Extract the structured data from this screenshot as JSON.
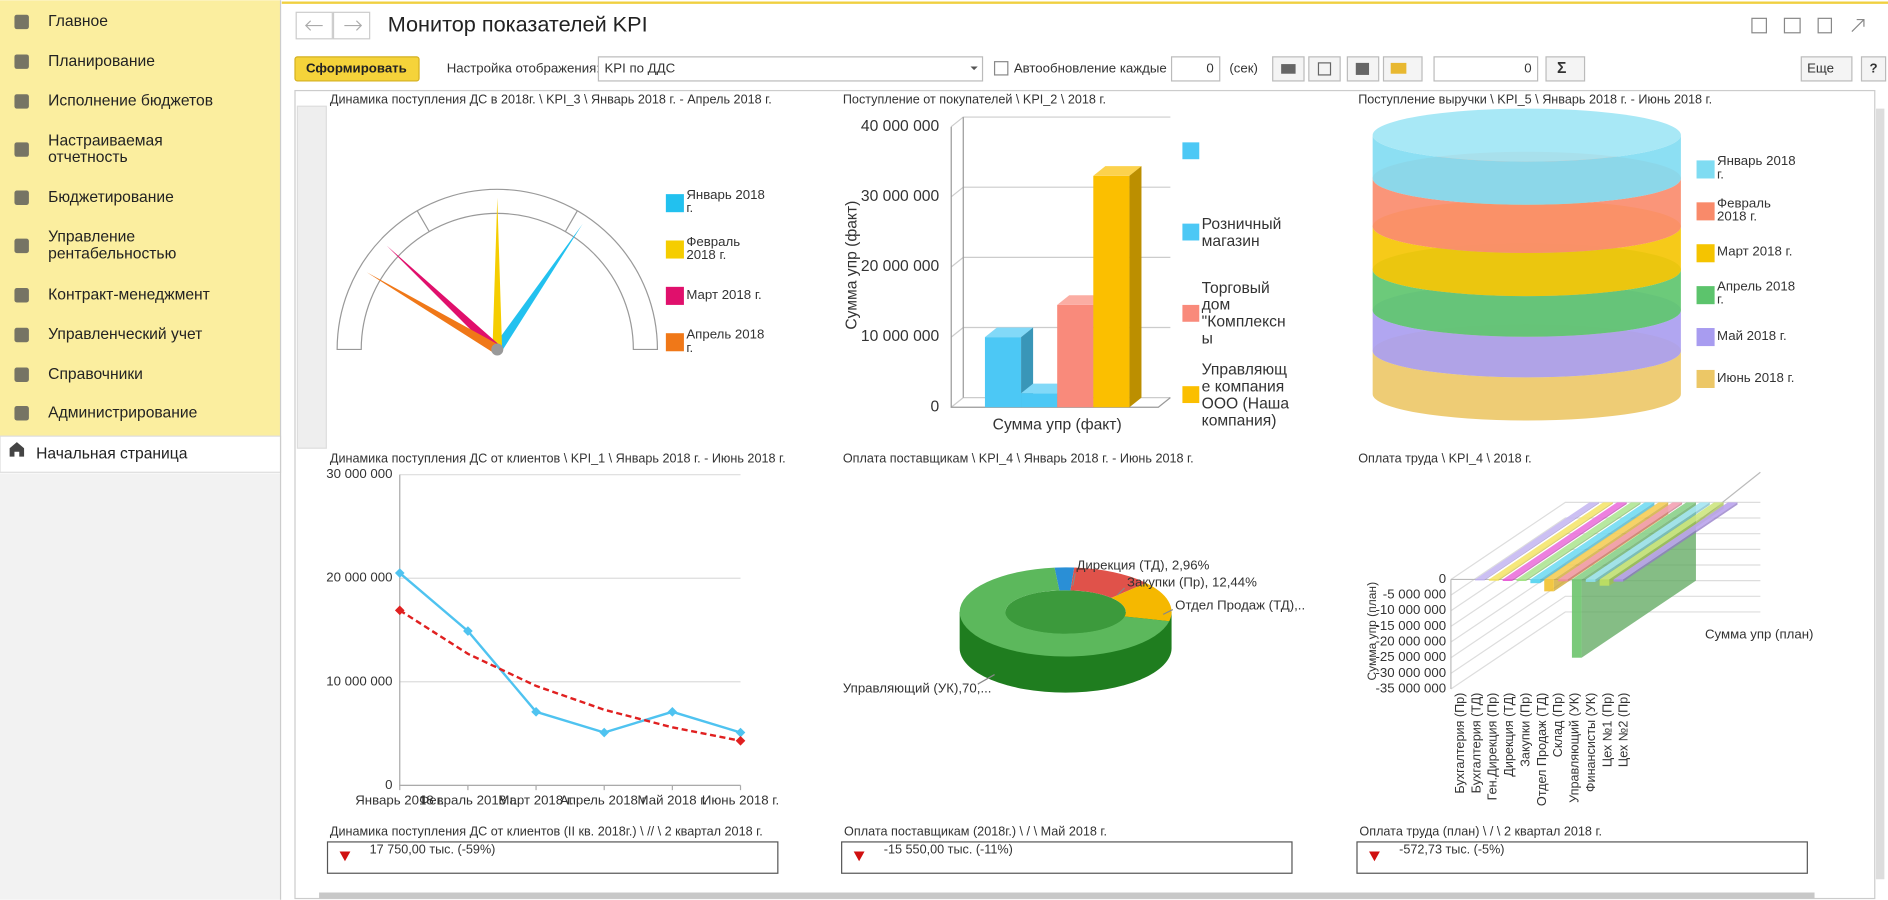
{
  "sidebar": {
    "items": [
      [
        "Главное"
      ],
      [
        "Планирование"
      ],
      [
        "Исполнение бюджетов"
      ],
      [
        "Настраиваемая",
        "отчетность"
      ],
      [
        "Бюджетирование"
      ],
      [
        "Управление",
        "рентабельностью"
      ],
      [
        "Контракт-менеджмент"
      ],
      [
        "Управленческий учет"
      ],
      [
        "Справочники"
      ],
      [
        "Администрирование"
      ]
    ],
    "home": "Начальная страница"
  },
  "header": {
    "title": "Монитор показателей KPI"
  },
  "toolbar": {
    "generate": "Сформировать",
    "settings_label": "Настройка отображения:",
    "settings_value": "KPI по ДДС",
    "auto_update": "Автообновление каждые",
    "interval": 0,
    "interval_unit": "(сек)",
    "counter": 0,
    "sum": "Σ",
    "more": "Еще",
    "help": "?"
  },
  "chart_data": [
    {
      "type": "gauge",
      "title": "Динамика поступления ДС в 2018г. \\ KPI_3 \\ Январь 2018 г. - Апрель 2018 г.",
      "ylim": [
        0,
        100
      ],
      "series": [
        {
          "name": "Январь 2018 г.",
          "color": "#22c1ef",
          "values": [
            69
          ]
        },
        {
          "name": "Февраль 2018 г.",
          "color": "#f5cd00",
          "values": [
            50
          ]
        },
        {
          "name": "Март 2018 г.",
          "color": "#e0106c",
          "values": [
            24
          ]
        },
        {
          "name": "Апрель 2018 г.",
          "color": "#f07818",
          "values": [
            17
          ]
        }
      ]
    },
    {
      "type": "bar",
      "title": "Поступление от покупателей \\ KPI_2 \\ 2018 г.",
      "ylabel": "Сумма упр (факт)",
      "categories": [
        "Сумма упр (факт)"
      ],
      "ylim": [
        0,
        40000000
      ],
      "yticks": [
        0,
        {
          "value": 10000000,
          "label": "10 000 000"
        },
        {
          "value": 20000000,
          "label": "20 000 000"
        },
        {
          "value": 30000000,
          "label": "30 000 000"
        },
        {
          "value": 40000000,
          "label": "40 000 000"
        }
      ],
      "grid": true,
      "series": [
        {
          "name": null,
          "color": "#4cc8f5",
          "values": [
            10000000
          ]
        },
        {
          "name": "Розничный магазин",
          "color": "#4cc8f5",
          "values": [
            2000000
          ]
        },
        {
          "name": "Торговый дом \"Комплексны",
          "color": "#f98a7b",
          "values": [
            14600000
          ]
        },
        {
          "name": "Управляюще компания ООО (Наша компания)",
          "color": "#fbbf00",
          "values": [
            33000000
          ]
        }
      ]
    },
    {
      "type": "cylinder",
      "title": "Поступление выручки \\ KPI_5 \\ Январь 2018 г. - Июнь 2018 г.",
      "series": [
        {
          "name": "Январь 2018 г.",
          "color": "#7fdcf2",
          "values": [
            17
          ]
        },
        {
          "name": "Февраль 2018 г.",
          "color": "#f98a6a",
          "values": [
            19
          ]
        },
        {
          "name": "Март 2018 г.",
          "color": "#f5c400",
          "values": [
            17
          ]
        },
        {
          "name": "Апрель 2018 г.",
          "color": "#5cc46c",
          "values": [
            16
          ]
        },
        {
          "name": "Май 2018 г.",
          "color": "#a89cf0",
          "values": [
            16
          ]
        },
        {
          "name": "Июнь 2018 г.",
          "color": "#ecc766",
          "values": [
            17
          ]
        }
      ]
    },
    {
      "type": "line",
      "title": "Динамика поступления ДС от клиентов \\ KPI_1 \\ Январь 2018 г. - Июнь 2018 г.",
      "categories": [
        "Январь 2018 г.",
        "Февраль 2018 г.",
        "Март 2018 г.",
        "Апрель 2018 г.",
        "Май 2018 г.",
        "Июнь 2018 г."
      ],
      "ylim": [
        0,
        30000000
      ],
      "yticks": [
        0,
        {
          "value": 10000000,
          "label": "10 000 000"
        },
        {
          "value": 20000000,
          "label": "20 000 000"
        },
        {
          "value": 30000000,
          "label": "30 000 000"
        }
      ],
      "grid": true,
      "series": [
        {
          "color": "#4fc3f0",
          "values": [
            20500000,
            14900000,
            7100000,
            5100000,
            7100000,
            5100000
          ]
        },
        {
          "color": "#e02020",
          "style": "dashed",
          "values": [
            16900000,
            12700000,
            9600000,
            7300000,
            5600000,
            4300000
          ]
        }
      ]
    },
    {
      "type": "pie",
      "title": "Оплата поставщикам \\ KPI_4 \\ Январь 2018 г. - Июнь 2018 г.",
      "donut": true,
      "values": [
        2.96,
        12.44,
        14.6,
        70.0
      ],
      "value_labels": [
        "Дирекция (ТД), 2,96%",
        "Закупки (Пр), 12,44%",
        "Отдел Продаж (ТД),..",
        "Управляющий (УК),70,..."
      ],
      "colors": [
        "#2a8fd6",
        "#e0524a",
        "#f5b800",
        "#5cb85c"
      ]
    },
    {
      "type": "bar3d",
      "title": "Оплата труда \\ KPI_4 \\ 2018 г.",
      "ylabel": "Сумма упр (план)",
      "categories": [
        "Бухгалтерия (Пр)",
        "Бухгалтерия (ТД)",
        "Ген.Дирекция (Пр)",
        "Дирекция (ТД)",
        "Закупки (Пр)",
        "Отдел Продаж (ТД)",
        "Склад (Пр)",
        "Управляющий (УК)",
        "Финансисты (УК)",
        "Цех №1 (Пр)",
        "Цех №2 (Пр)"
      ],
      "ylim": [
        -35000000,
        0
      ],
      "yticks": [
        0,
        {
          "value": -5000000,
          "label": "-5 000 000"
        },
        {
          "value": -10000000,
          "label": "-10 000 000"
        },
        {
          "value": -15000000,
          "label": "-15 000 000"
        },
        {
          "value": -20000000,
          "label": "-20 000 000"
        },
        {
          "value": -25000000,
          "label": "-25 000 000"
        },
        {
          "value": -30000000,
          "label": "-30 000 000"
        },
        {
          "value": -35000000,
          "label": "-35 000 000"
        }
      ],
      "colors": [
        "#b9a7ef",
        "#f2e04a",
        "#e64fd3",
        "#9be07a",
        "#4fd3f0",
        "#f2c12e",
        "#f08aa0",
        "#6cc46c",
        "#8ee0f0",
        "#c0e060",
        "#a98ce8"
      ],
      "series": [
        {
          "name": "Сумма упр (план)",
          "values": [
            -300000,
            -400000,
            -500000,
            -500000,
            -1200000,
            -3800000,
            -600000,
            -25000000,
            -800000,
            -2000000,
            -700000
          ]
        }
      ]
    }
  ],
  "indicators": [
    {
      "title": "Динамика поступления ДС от клиентов (II кв. 2018г.) \\ // \\ 2 квартал 2018 г.",
      "text": "17 750,00 тыс. (-59%)"
    },
    {
      "title": "Оплата поставщикам (2018г.) \\ / \\ Май 2018 г.",
      "text": "-15 550,00 тыс. (-11%)"
    },
    {
      "title": "Оплата труда (план) \\ / \\ 2 квартал 2018 г.",
      "text": "-572,73 тыс. (-5%)"
    }
  ]
}
